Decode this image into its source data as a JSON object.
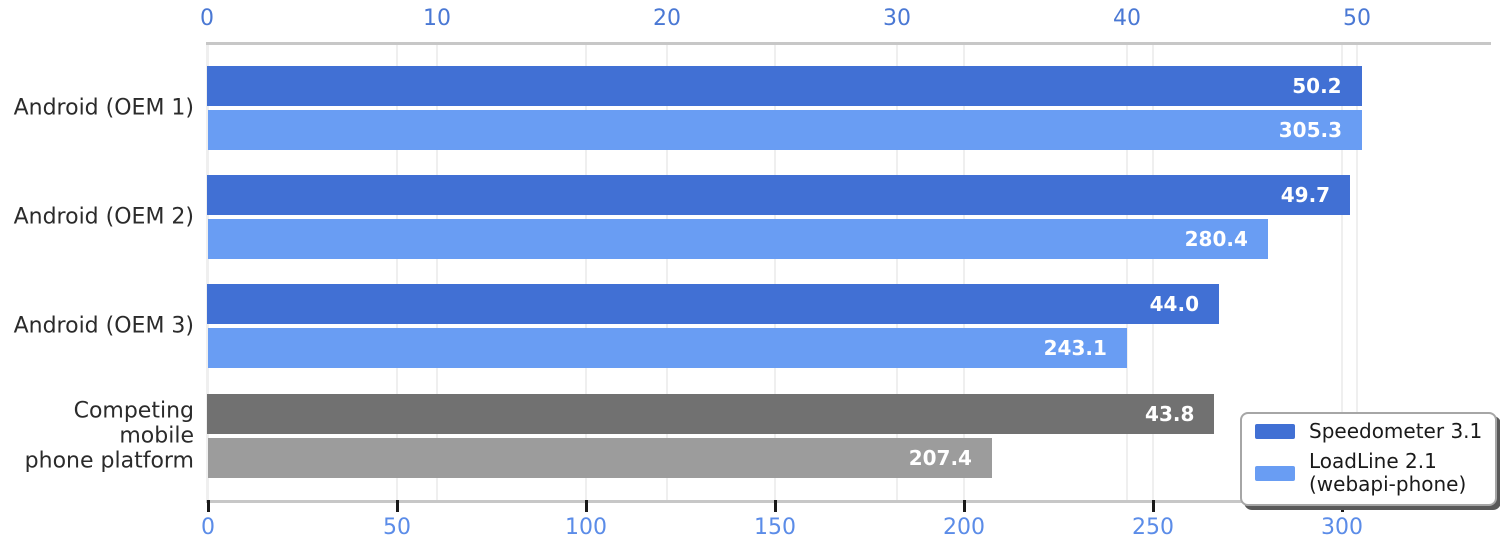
{
  "chart_data": {
    "type": "bar",
    "orientation": "horizontal",
    "title": "",
    "categories": [
      "Android (OEM 1)",
      "Android (OEM 2)",
      "Android (OEM 3)",
      "Competing mobile\nphone platform"
    ],
    "series": [
      {
        "name": "Speedometer 3.1",
        "axis": "top",
        "values": [
          50.2,
          49.7,
          44.0,
          43.8
        ],
        "labels": [
          "50.2",
          "49.7",
          "44.0",
          "43.8"
        ],
        "bar_colors": [
          "#4170d4",
          "#4170d4",
          "#4170d4",
          "#717171"
        ]
      },
      {
        "name": "LoadLine 2.1 (webapi-phone)",
        "axis": "bottom",
        "values": [
          305.3,
          280.4,
          243.1,
          207.4
        ],
        "labels": [
          "305.3",
          "280.4",
          "243.1",
          "207.4"
        ],
        "bar_colors": [
          "#699df3",
          "#699df3",
          "#699df3",
          "#9c9c9c"
        ]
      }
    ],
    "top_axis": {
      "ticks": [
        0,
        10,
        20,
        30,
        40,
        50
      ],
      "range": [
        0,
        55.8
      ]
    },
    "bottom_axis": {
      "ticks": [
        0,
        50,
        100,
        150,
        200,
        250,
        300
      ],
      "range": [
        0,
        339
      ]
    },
    "grid": true,
    "legend_position": "lower right"
  },
  "legend": {
    "items": [
      {
        "label": "Speedometer 3.1",
        "color": "#4170d4"
      },
      {
        "label": "LoadLine 2.1\n(webapi-phone)",
        "color": "#699df3"
      }
    ]
  },
  "colors": {
    "top_tick_text": "#4a78d4",
    "bottom_tick_text": "#5b8ce8",
    "axis_line": "#c7c7c7",
    "grid_line": "#efefef",
    "tick_mark": "#1a1a1a",
    "category_text": "#2b2b2b",
    "value_text": "#ffffff",
    "legend_border": "#a6a6a6",
    "legend_shadow": "#595959",
    "background": "#ffffff"
  }
}
